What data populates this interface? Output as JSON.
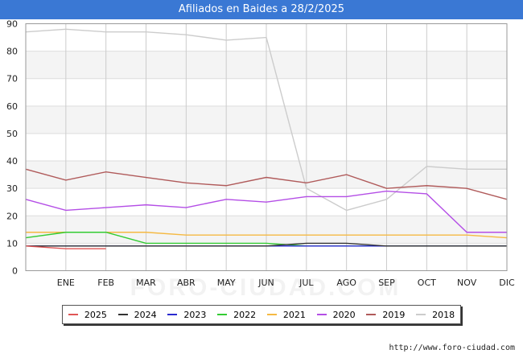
{
  "header": {
    "title": "Afiliados en Baides a 28/2/2025"
  },
  "footer": {
    "url": "http://www.foro-ciudad.com"
  },
  "watermark": "FORO-CIUDAD.COM",
  "chart_data": {
    "type": "line",
    "title": "Afiliados en Baides a 28/2/2025",
    "categories": [
      "ENE",
      "FEB",
      "MAR",
      "ABR",
      "MAY",
      "JUN",
      "JUL",
      "AGO",
      "SEP",
      "OCT",
      "NOV",
      "DIC"
    ],
    "ylim": [
      0,
      90
    ],
    "yticks": [
      0,
      10,
      20,
      30,
      40,
      50,
      60,
      70,
      80,
      90
    ],
    "grid": true,
    "legend_position": "bottom",
    "series": [
      {
        "name": "2025",
        "color": "#e05555",
        "x": [
          -1,
          0,
          1
        ],
        "values": [
          9,
          8,
          8
        ]
      },
      {
        "name": "2024",
        "color": "#333333",
        "x": [
          -1,
          0,
          1,
          2,
          3,
          4,
          5,
          6,
          7,
          8,
          9,
          10,
          11
        ],
        "values": [
          9,
          9,
          9,
          9,
          9,
          9,
          9,
          10,
          10,
          9,
          9,
          9,
          9
        ]
      },
      {
        "name": "2023",
        "color": "#2a2ad0",
        "x": [
          -1,
          0,
          1,
          2,
          3,
          4,
          5,
          6,
          7,
          8,
          9,
          10,
          11
        ],
        "values": [
          9,
          9,
          9,
          9,
          9,
          9,
          9,
          9,
          9,
          9,
          9,
          9,
          9
        ]
      },
      {
        "name": "2022",
        "color": "#33cc33",
        "x": [
          -1,
          0,
          1,
          2,
          3,
          4,
          5,
          6,
          7,
          8,
          9,
          10,
          11
        ],
        "values": [
          12,
          14,
          14,
          10,
          10,
          10,
          10,
          9,
          9,
          9,
          9,
          9,
          9
        ]
      },
      {
        "name": "2021",
        "color": "#f5b942",
        "x": [
          -1,
          0,
          1,
          2,
          3,
          4,
          5,
          6,
          7,
          8,
          9,
          10,
          11
        ],
        "values": [
          14,
          14,
          14,
          14,
          13,
          13,
          13,
          13,
          13,
          13,
          13,
          13,
          12
        ]
      },
      {
        "name": "2020",
        "color": "#b44ee6",
        "x": [
          -1,
          0,
          1,
          2,
          3,
          4,
          5,
          6,
          7,
          8,
          9,
          10,
          11
        ],
        "values": [
          26,
          22,
          23,
          24,
          23,
          26,
          25,
          27,
          27,
          29,
          28,
          14,
          14
        ]
      },
      {
        "name": "2019",
        "color": "#b05a5a",
        "x": [
          -1,
          0,
          1,
          2,
          3,
          4,
          5,
          6,
          7,
          8,
          9,
          10,
          11
        ],
        "values": [
          37,
          33,
          36,
          34,
          32,
          31,
          34,
          32,
          35,
          30,
          31,
          30,
          26
        ]
      },
      {
        "name": "2018",
        "color": "#cccccc",
        "x": [
          -1,
          0,
          1,
          2,
          3,
          4,
          5,
          6,
          7,
          8,
          9,
          10,
          11
        ],
        "values": [
          87,
          88,
          87,
          87,
          86,
          84,
          85,
          30,
          22,
          26,
          38,
          37,
          37
        ]
      }
    ]
  }
}
